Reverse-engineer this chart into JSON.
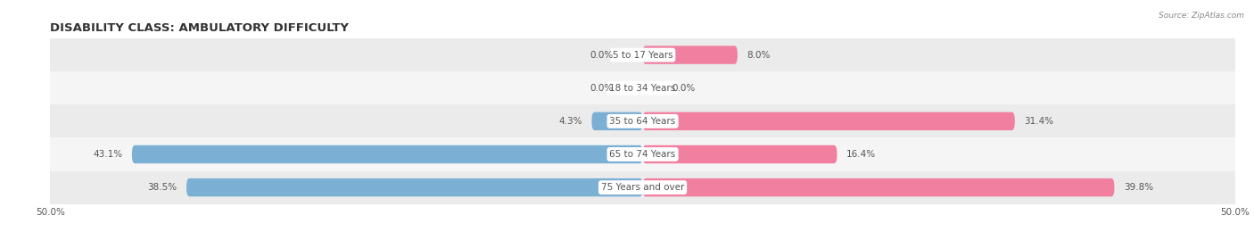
{
  "title": "DISABILITY CLASS: AMBULATORY DIFFICULTY",
  "source": "Source: ZipAtlas.com",
  "categories": [
    "5 to 17 Years",
    "18 to 34 Years",
    "35 to 64 Years",
    "65 to 74 Years",
    "75 Years and over"
  ],
  "male_values": [
    0.0,
    0.0,
    4.3,
    43.1,
    38.5
  ],
  "female_values": [
    8.0,
    0.0,
    31.4,
    16.4,
    39.8
  ],
  "male_color": "#7bafd4",
  "female_color": "#f07fa0",
  "row_color_odd": "#ebebeb",
  "row_color_even": "#f5f5f5",
  "max_val": 50.0,
  "title_fontsize": 9.5,
  "label_fontsize": 7.5,
  "category_fontsize": 7.5,
  "tick_fontsize": 7.5
}
